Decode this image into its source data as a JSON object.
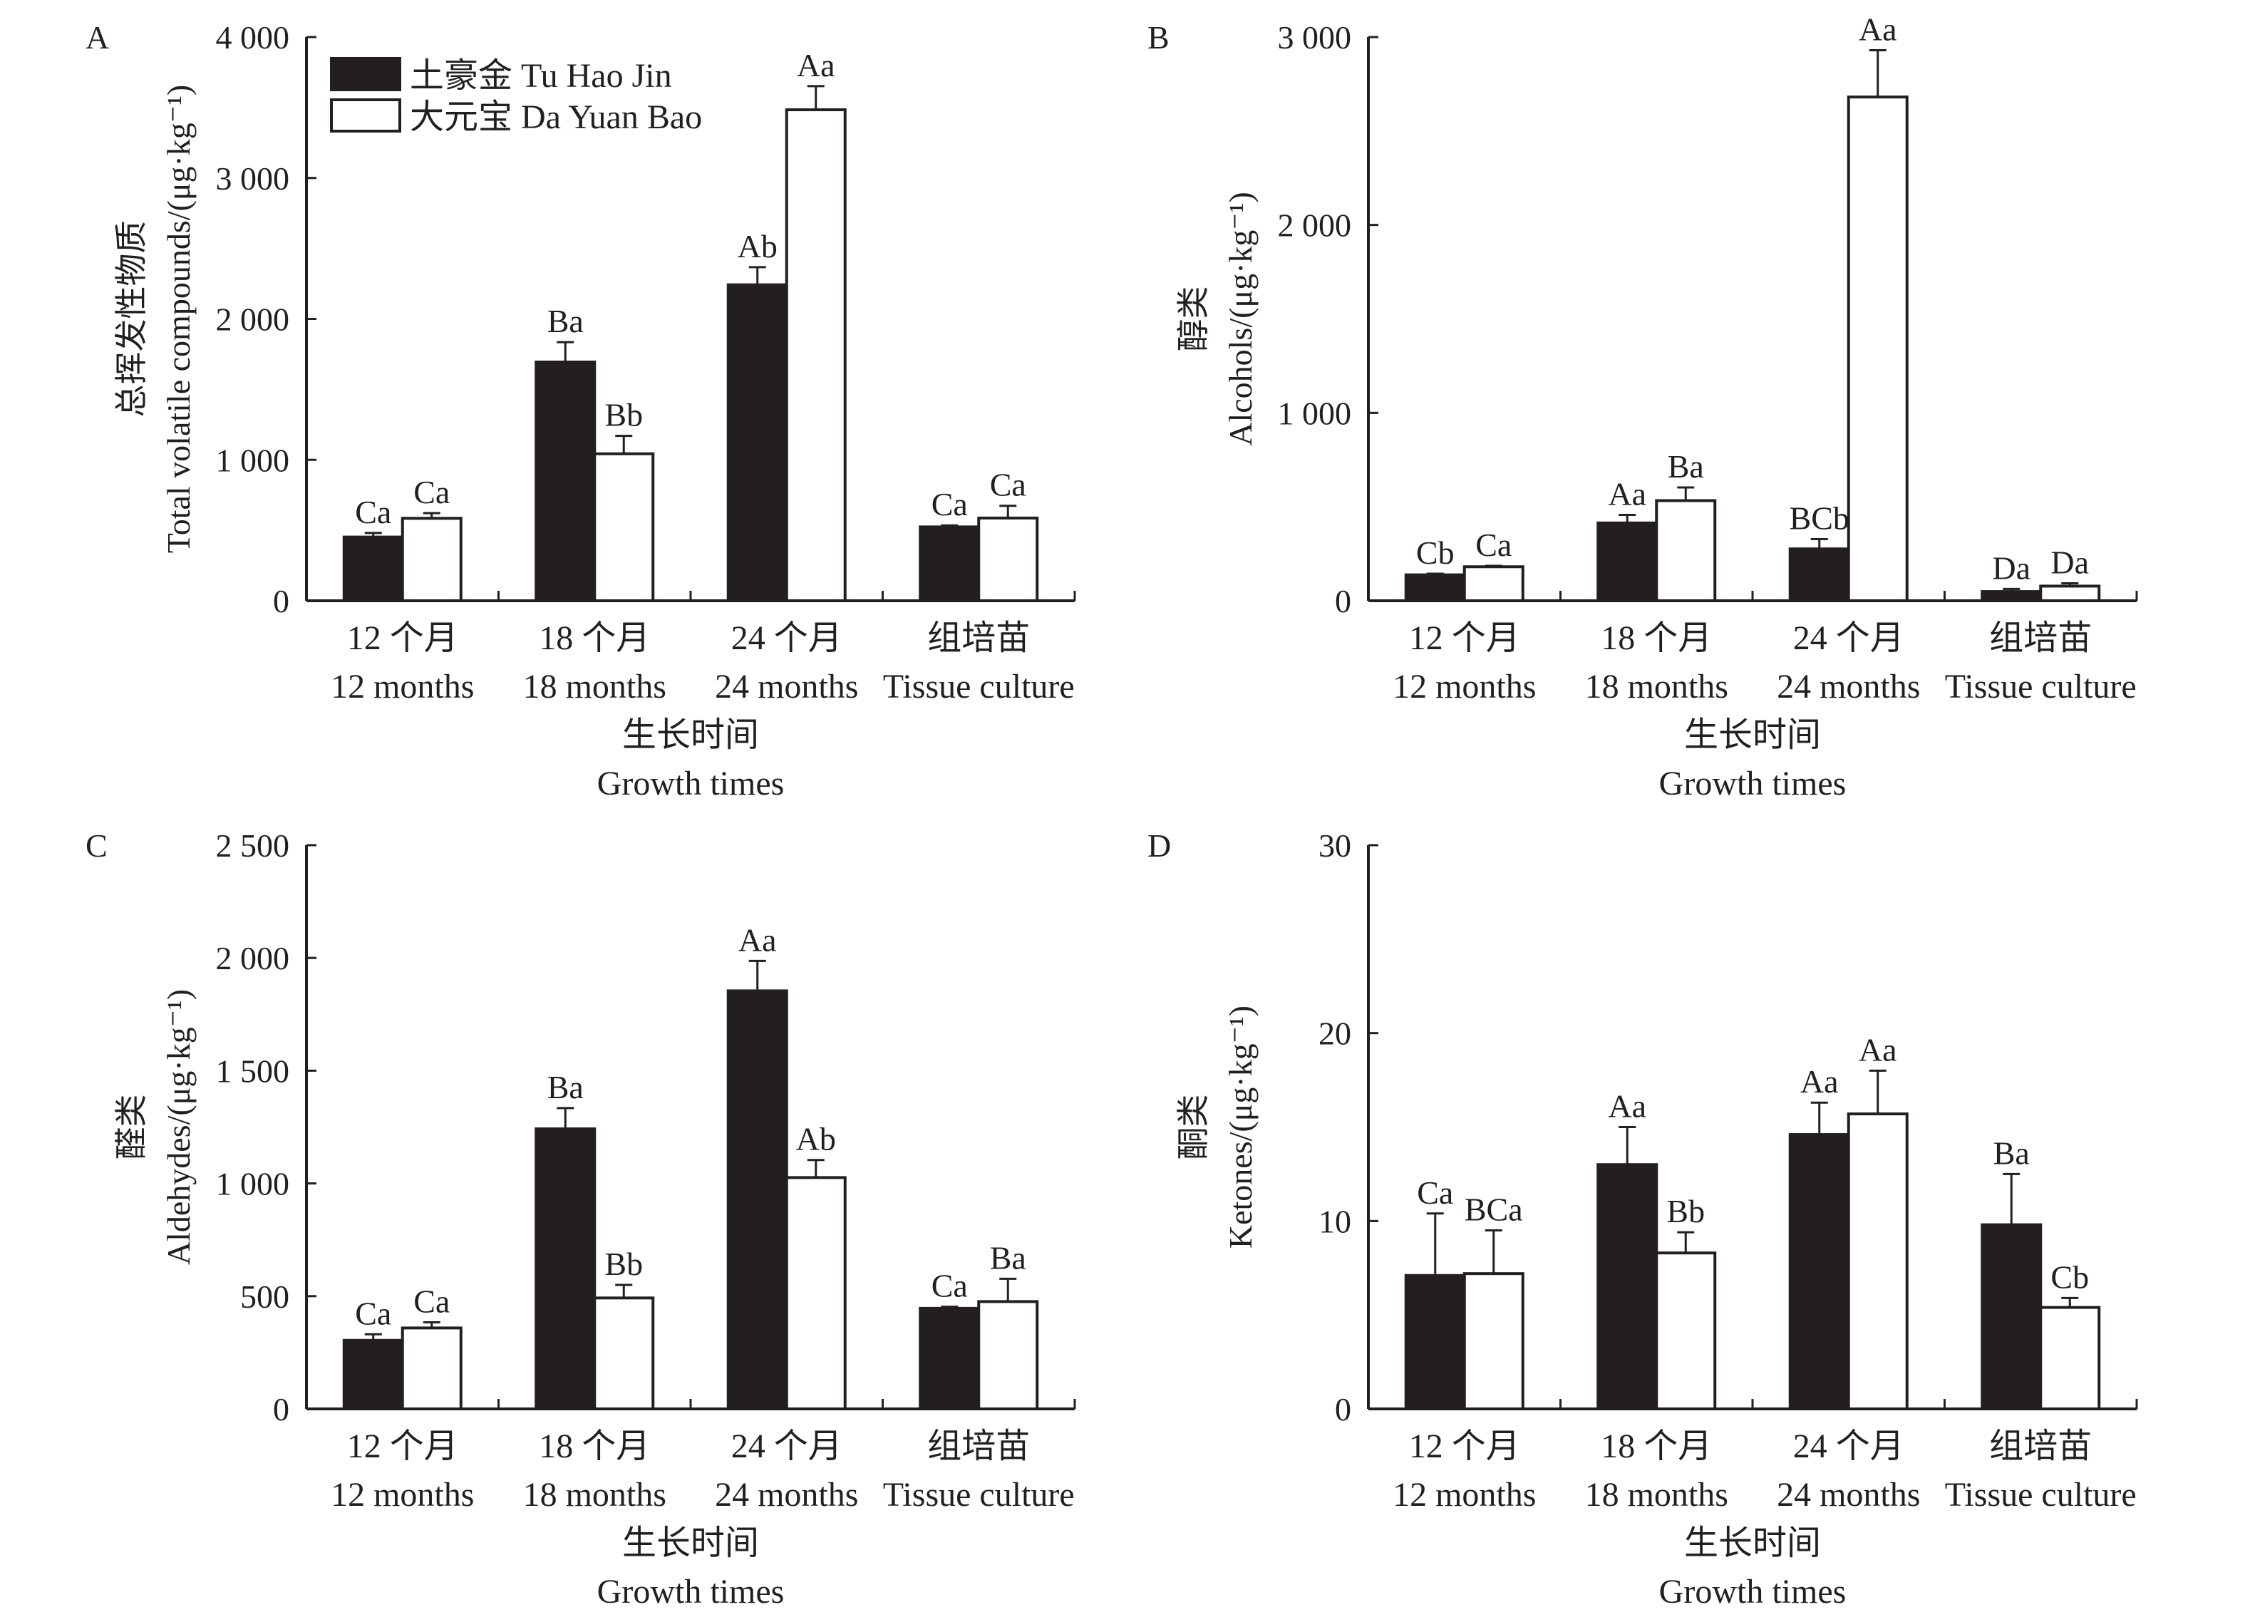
{
  "legend": {
    "items": [
      {
        "label": "土豪金 Tu Hao Jin",
        "fill": "#231f20"
      },
      {
        "label": "大元宝 Da Yuan Bao",
        "fill": "#ffffff"
      }
    ]
  },
  "x_axis": {
    "categories_cn": [
      "12  个月",
      "18  个月",
      "24  个月",
      "组培苗"
    ],
    "categories_en": [
      "12 months",
      "18 months",
      "24 months",
      "Tissue culture"
    ],
    "title_cn": "生长时间",
    "title_en": "Growth times"
  },
  "colors": {
    "ink": "#231f20",
    "bar_dark": "#231f20",
    "bar_light": "#ffffff"
  },
  "chart_data": [
    {
      "panel": "A",
      "type": "bar",
      "title": "",
      "ylabel_cn": "总挥发性物质",
      "ylabel_en": "Total volatile compounds/(μg·kg⁻¹)",
      "xlabel": "生长时间 Growth times",
      "categories": [
        "12 months",
        "18 months",
        "24 months",
        "Tissue culture"
      ],
      "ylim": [
        0,
        4000
      ],
      "yticks": [
        0,
        1000,
        2000,
        3000,
        4000
      ],
      "ytick_labels": [
        "0",
        "1 000",
        "2 000",
        "3 000",
        "4 000"
      ],
      "legend_position": "top-left",
      "grid": false,
      "series": [
        {
          "name": "土豪金 Tu Hao Jin",
          "values": [
            452,
            1694,
            2242,
            524
          ],
          "error": [
            29,
            141,
            125,
            11
          ],
          "labels": [
            "Ca",
            "Ba",
            "Ab",
            "Ca"
          ]
        },
        {
          "name": "大元宝 Da Yuan Bao",
          "values": [
            585,
            1043,
            3484,
            587
          ],
          "error": [
            37,
            127,
            168,
            87
          ],
          "labels": [
            "Ca",
            "Bb",
            "Aa",
            "Ca"
          ]
        }
      ]
    },
    {
      "panel": "B",
      "type": "bar",
      "title": "",
      "ylabel_cn": "醇类",
      "ylabel_en": "Alcohols/(μg·kg⁻¹)",
      "xlabel": "生长时间 Growth times",
      "categories": [
        "12 months",
        "18 months",
        "24 months",
        "Tissue culture"
      ],
      "ylim": [
        0,
        3000
      ],
      "yticks": [
        0,
        1000,
        2000,
        3000
      ],
      "ytick_labels": [
        "0",
        "1 000",
        "2 000",
        "3 000"
      ],
      "grid": false,
      "series": [
        {
          "name": "土豪金 Tu Hao Jin",
          "values": [
            138,
            414,
            276,
            49
          ],
          "error": [
            6,
            43,
            52,
            14
          ],
          "labels": [
            "Cb",
            "Aa",
            "BCb",
            "Da"
          ]
        },
        {
          "name": "大元宝 Da Yuan Bao",
          "values": [
            181,
            533,
            2681,
            78
          ],
          "error": [
            5,
            70,
            249,
            15
          ],
          "labels": [
            "Ca",
            "Ba",
            "Aa",
            "Da"
          ]
        }
      ]
    },
    {
      "panel": "C",
      "type": "bar",
      "title": "",
      "ylabel_cn": "醛类",
      "ylabel_en": "Aldehydes/(μg·kg⁻¹)",
      "xlabel": "生长时间 Growth times",
      "categories": [
        "12 months",
        "18 months",
        "24 months",
        "Tissue culture"
      ],
      "ylim": [
        0,
        2500
      ],
      "yticks": [
        0,
        500,
        1000,
        1500,
        2000,
        2500
      ],
      "ytick_labels": [
        "0",
        "500",
        "1 000",
        "1 500",
        "2 000",
        "2 500"
      ],
      "grid": false,
      "series": [
        {
          "name": "土豪金 Tu Hao Jin",
          "values": [
            304,
            1242,
            1854,
            446
          ],
          "error": [
            27,
            92,
            133,
            7
          ],
          "labels": [
            "Ca",
            "Ba",
            "Aa",
            "Ca"
          ]
        },
        {
          "name": "大元宝 Da Yuan Bao",
          "values": [
            359,
            492,
            1026,
            476
          ],
          "error": [
            25,
            58,
            78,
            101
          ],
          "labels": [
            "Ca",
            "Bb",
            "Ab",
            "Ba"
          ]
        }
      ]
    },
    {
      "panel": "D",
      "type": "bar",
      "title": "",
      "ylabel_cn": "酮类",
      "ylabel_en": "Ketones/(μg·kg⁻¹)",
      "xlabel": "生长时间 Growth times",
      "categories": [
        "12 months",
        "18 months",
        "24 months",
        "Tissue culture"
      ],
      "ylim": [
        0,
        30
      ],
      "yticks": [
        0,
        10,
        20,
        30
      ],
      "ytick_labels": [
        "0",
        "10",
        "20",
        "30"
      ],
      "grid": false,
      "series": [
        {
          "name": "土豪金 Tu Hao Jin",
          "values": [
            7.1,
            13.0,
            14.6,
            9.8
          ],
          "error": [
            3.3,
            2.0,
            1.7,
            2.7
          ],
          "labels": [
            "Ca",
            "Aa",
            "Aa",
            "Ba"
          ]
        },
        {
          "name": "大元宝 Da Yuan Bao",
          "values": [
            7.2,
            8.3,
            15.7,
            5.4
          ],
          "error": [
            2.3,
            1.1,
            2.3,
            0.5
          ],
          "labels": [
            "BCa",
            "Bb",
            "Aa",
            "Cb"
          ]
        }
      ]
    }
  ]
}
